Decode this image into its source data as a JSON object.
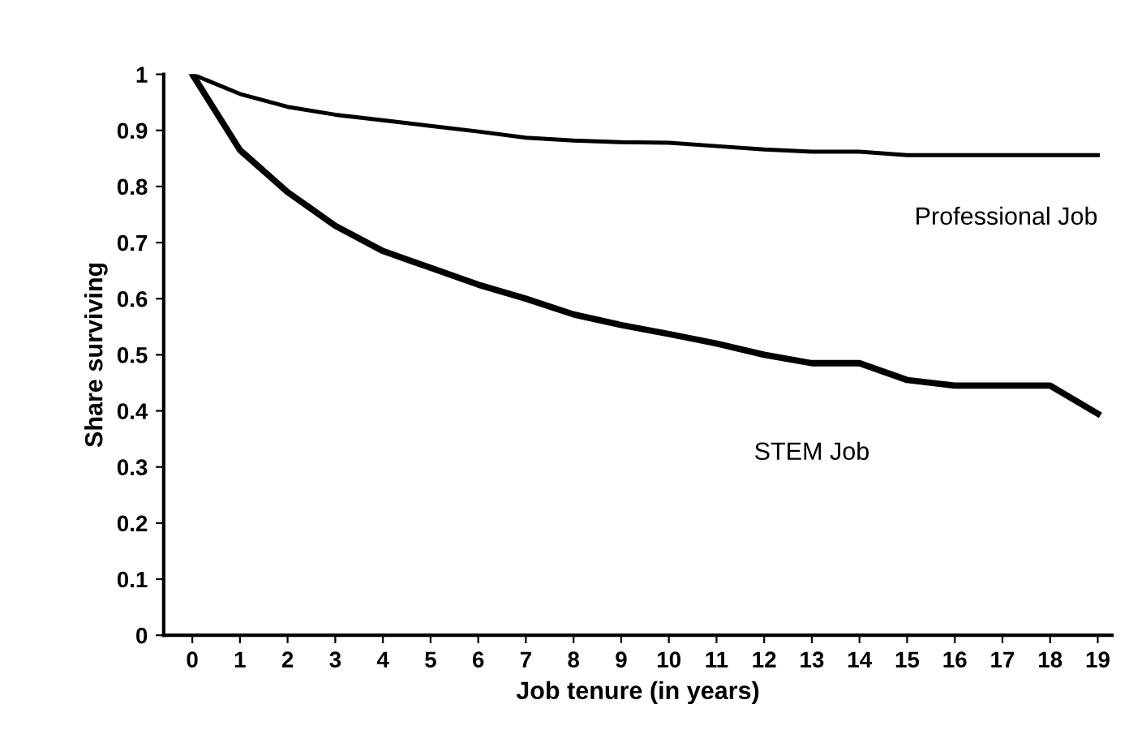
{
  "chart_data": {
    "type": "line",
    "xlabel": "Job tenure (in years)",
    "ylabel": "Share surviving",
    "x": [
      0,
      1,
      2,
      3,
      4,
      5,
      6,
      7,
      8,
      9,
      10,
      11,
      12,
      13,
      14,
      15,
      16,
      17,
      18,
      19
    ],
    "series": [
      {
        "name": "Professional Job",
        "color": "#000000",
        "values": [
          1,
          0.965,
          0.942,
          0.928,
          0.918,
          0.908,
          0.898,
          0.887,
          0.882,
          0.879,
          0.878,
          0.872,
          0.866,
          0.862,
          0.862,
          0.856,
          0.856,
          0.856,
          0.856,
          0.856
        ]
      },
      {
        "name": "STEM Job",
        "color": "#000000",
        "values": [
          1,
          0.865,
          0.79,
          0.73,
          0.685,
          0.655,
          0.625,
          0.6,
          0.572,
          0.553,
          0.537,
          0.52,
          0.5,
          0.485,
          0.485,
          0.455,
          0.445,
          0.445,
          0.445,
          0.395
        ]
      }
    ],
    "xlim": [
      -0.6,
      19.3
    ],
    "ylim": [
      0,
      1
    ],
    "xticks": [
      0,
      1,
      2,
      3,
      4,
      5,
      6,
      7,
      8,
      9,
      10,
      11,
      12,
      13,
      14,
      15,
      16,
      17,
      18,
      19
    ],
    "yticks": [
      0,
      0.1,
      0.2,
      0.3,
      0.4,
      0.5,
      0.6,
      0.7,
      0.8,
      0.9,
      1
    ],
    "grid": false,
    "legend": false,
    "marker": "none",
    "line_style": "solid"
  }
}
